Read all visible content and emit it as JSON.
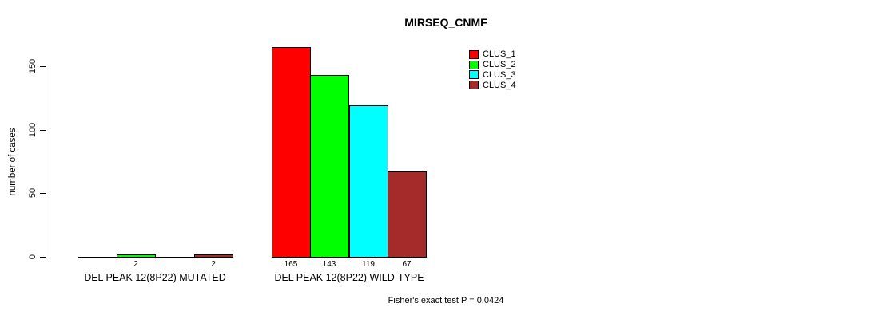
{
  "chart_data": {
    "type": "bar",
    "title": "MIRSEQ_CNMF",
    "ylabel": "number of cases",
    "xlabel": "",
    "ylim": [
      0,
      165
    ],
    "yticks": [
      0,
      50,
      100,
      150
    ],
    "grid": false,
    "legend_position": "top-right",
    "categories": [
      "DEL PEAK 12(8P22) MUTATED",
      "DEL PEAK 12(8P22) WILD-TYPE"
    ],
    "series": [
      {
        "name": "CLUS_1",
        "color": "#ff0000",
        "values": [
          0,
          165
        ]
      },
      {
        "name": "CLUS_2",
        "color": "#00ff00",
        "values": [
          2,
          143
        ]
      },
      {
        "name": "CLUS_3",
        "color": "#00ffff",
        "values": [
          0,
          119
        ]
      },
      {
        "name": "CLUS_4",
        "color": "#a52a2a",
        "values": [
          2,
          67
        ]
      }
    ],
    "bar_labels": [
      [
        "",
        "2",
        "",
        "2"
      ],
      [
        "165",
        "143",
        "119",
        "67"
      ]
    ],
    "annotation": "Fisher's exact test P = 0.0424",
    "axis_color": "#000000",
    "bar_border_color": "#000000"
  }
}
